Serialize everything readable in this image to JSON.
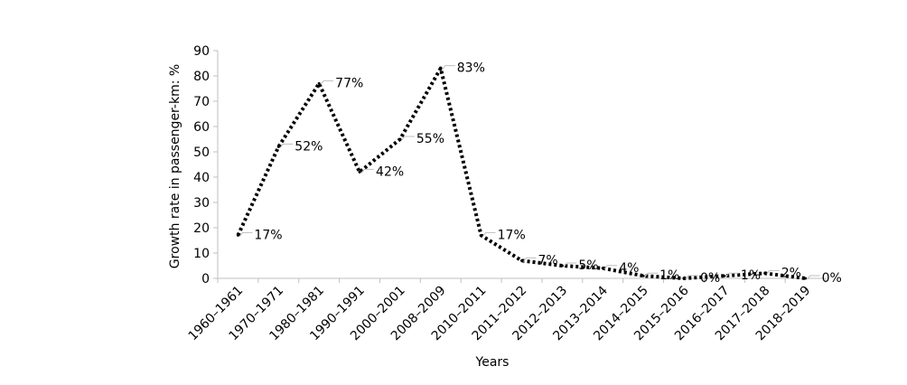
{
  "chart_data": {
    "type": "line",
    "xlabel": "Years",
    "ylabel": "Growth rate in passenger-km: %",
    "ylim": [
      0,
      90
    ],
    "yticks": [
      0,
      10,
      20,
      30,
      40,
      50,
      60,
      70,
      80,
      90
    ],
    "grid": false,
    "legend": "none",
    "line_style": "dotted",
    "line_color": "#000000",
    "categories": [
      "1960–1961",
      "1970–1971",
      "1980–1981",
      "1990–1991",
      "2000–2001",
      "2008–2009",
      "2010–2011",
      "2011–2012",
      "2012–2013",
      "2013–2014",
      "2014–2015",
      "2015–2016",
      "2016–2017",
      "2017–2018",
      "2018–2019"
    ],
    "values": [
      17,
      52,
      77,
      42,
      55,
      83,
      17,
      7,
      5,
      4,
      1,
      0,
      1,
      2,
      0
    ],
    "data_labels": [
      "17%",
      "52%",
      "77%",
      "42%",
      "55%",
      "83%",
      "17%",
      "7%",
      "5%",
      "4%",
      "1%",
      "0%",
      "1%",
      "2%",
      "0%"
    ]
  }
}
